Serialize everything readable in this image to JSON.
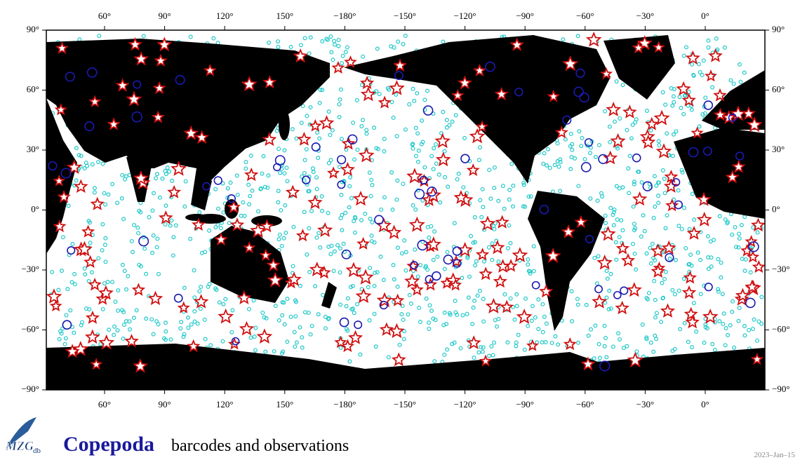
{
  "map": {
    "lon_labels": [
      "60°",
      "90°",
      "120°",
      "150°",
      "−180°",
      "−150°",
      "−120°",
      "−90°",
      "−60°",
      "−30°",
      "0°"
    ],
    "lat_labels": [
      "90°",
      "60°",
      "30°",
      "0°",
      "−30°",
      "−60°",
      "−90°"
    ],
    "title": "Copepoda",
    "subtitle": "barcodes and observations",
    "date": "2023–Jan–15",
    "logo": {
      "main": "MZG",
      "sub": "db"
    }
  }
}
